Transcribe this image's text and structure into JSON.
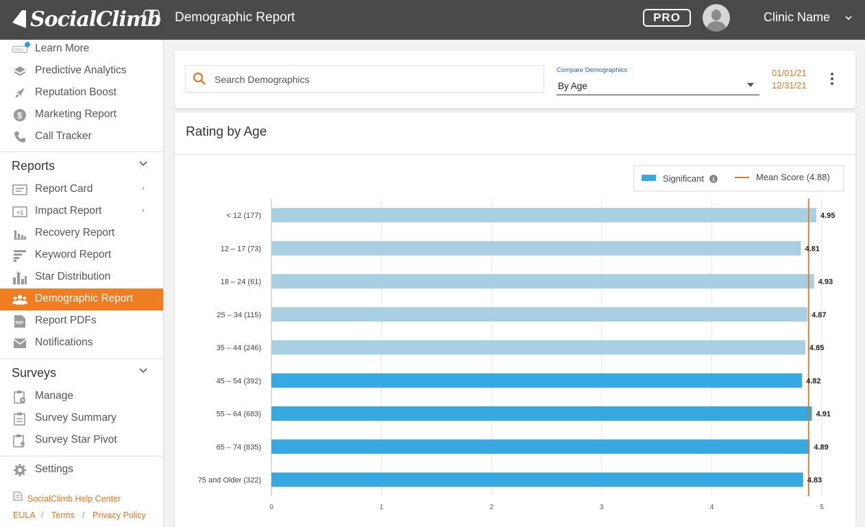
{
  "brand": {
    "name": "SocialClimb"
  },
  "header": {
    "title": "Demographic Report",
    "pro_badge": "PRO",
    "clinic_name": "Clinic Name"
  },
  "sidebar": {
    "top_items": [
      {
        "label": "Learn More",
        "icon": "pro-badge-icon"
      },
      {
        "label": "Predictive Analytics",
        "icon": "layers-icon"
      },
      {
        "label": "Reputation Boost",
        "icon": "rocket-icon"
      },
      {
        "label": "Marketing Report",
        "icon": "dollar-icon"
      },
      {
        "label": "Call Tracker",
        "icon": "phone-icon"
      }
    ],
    "reports": {
      "title": "Reports",
      "items": [
        {
          "label": "Report Card",
          "icon": "report-card-icon"
        },
        {
          "label": "Impact Report",
          "icon": "impact-icon"
        },
        {
          "label": "Recovery Report",
          "icon": "recovery-icon"
        },
        {
          "label": "Keyword Report",
          "icon": "keyword-icon"
        },
        {
          "label": "Star Distribution",
          "icon": "star-distribution-icon"
        },
        {
          "label": "Demographic Report",
          "icon": "people-icon"
        },
        {
          "label": "Report PDFs",
          "icon": "pdf-icon"
        },
        {
          "label": "Notifications",
          "icon": "envelope-icon"
        }
      ]
    },
    "surveys": {
      "title": "Surveys",
      "items": [
        {
          "label": "Manage",
          "icon": "clipboard-gear-icon"
        },
        {
          "label": "Survey Summary",
          "icon": "clipboard-icon"
        },
        {
          "label": "Survey Star Pivot",
          "icon": "clipboard-star-icon"
        }
      ]
    },
    "settings_label": "Settings",
    "help_center": "SocialClimb Help Center",
    "footer_links": [
      "EULA",
      "Terms",
      "Privacy Policy"
    ]
  },
  "filters": {
    "search_placeholder": "Search Demographics",
    "compare_label": "Compare Demographics",
    "compare_value": "By Age",
    "date_start": "01/01/21",
    "date_end": "12/31/21"
  },
  "chart": {
    "title": "Rating by Age",
    "legend_significant": "Significant",
    "legend_mean": "Mean Score (4.88)"
  },
  "colors": {
    "accent": "#f07d22",
    "significant": "#38a9e0",
    "not_significant": "#a8d0e2",
    "mean_line": "#e8731c",
    "topbar": "#4a4a4a"
  },
  "chart_data": {
    "type": "bar",
    "orientation": "horizontal",
    "categories": [
      "< 12 (177)",
      "12 – 17 (73)",
      "18 – 24 (61)",
      "25 – 34 (115)",
      "35 – 44 (246)",
      "45 – 54 (392)",
      "55 – 64 (683)",
      "65 – 74 (835)",
      "75 and Older (322)"
    ],
    "values": [
      4.95,
      4.81,
      4.93,
      4.87,
      4.85,
      4.82,
      4.91,
      4.89,
      4.83
    ],
    "labels": [
      "4.95",
      "4.81",
      "4.93",
      "4.87",
      "4.85",
      "4.82",
      "4.91",
      "4.89",
      "4.83"
    ],
    "significant": [
      false,
      false,
      false,
      false,
      false,
      true,
      true,
      true,
      true
    ],
    "mean": 4.88,
    "xlim": [
      0,
      5
    ],
    "xticks": [
      "0",
      "1",
      "2",
      "3",
      "4",
      "5"
    ],
    "grid": true,
    "legend": "top-right"
  }
}
